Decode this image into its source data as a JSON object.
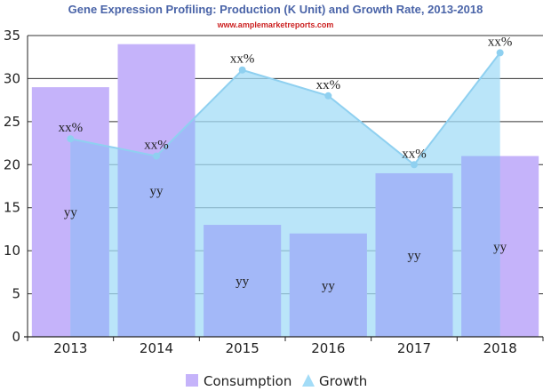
{
  "chart_data": {
    "type": "bar",
    "title": "Gene Expression Profiling: Production (K Unit) and Growth Rate, 2013-2018",
    "subtitle": "www.amplemarketreports.com",
    "categories": [
      "2013",
      "2014",
      "2015",
      "2016",
      "2017",
      "2018"
    ],
    "ylim": [
      0,
      35
    ],
    "yticks": [
      0,
      5,
      10,
      15,
      20,
      25,
      30,
      35
    ],
    "grid": true,
    "legend_position": "bottom-center",
    "series": [
      {
        "name": "Consumption",
        "type": "bar",
        "values": [
          29,
          34,
          13,
          12,
          19,
          21
        ],
        "color": "#c5b3fa"
      },
      {
        "name": "Growth",
        "type": "area",
        "values": [
          23,
          21,
          31,
          28,
          20,
          33
        ],
        "color": "#a3dcf7",
        "line_color": "#8fd0f0"
      }
    ],
    "bar_labels": [
      "yy",
      "yy",
      "yy",
      "yy",
      "yy",
      "yy"
    ],
    "point_labels": [
      "xx%",
      "xx%",
      "xx%",
      "xx%",
      "xx%",
      "xx%"
    ],
    "colors": {
      "title": "#4a64a8",
      "subtitle": "#cc2222",
      "grid": "#333333",
      "overlap": "#a3b8f8"
    }
  }
}
